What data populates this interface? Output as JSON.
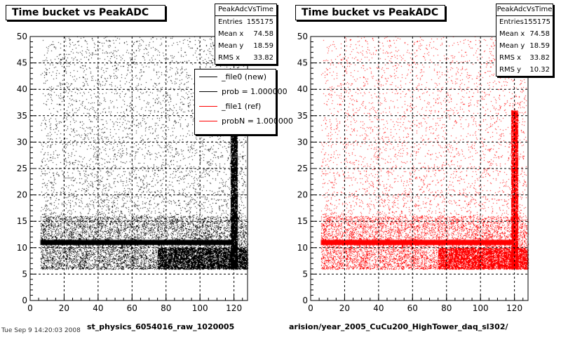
{
  "chart_data": [
    {
      "type": "scatter",
      "title": "Time bucket vs PeakADC",
      "xlim": [
        0,
        128
      ],
      "ylim": [
        0,
        50
      ],
      "x_ticks": [
        0,
        20,
        40,
        60,
        80,
        100,
        120
      ],
      "y_ticks": [
        0,
        5,
        10,
        15,
        20,
        25,
        30,
        35,
        40,
        45,
        50
      ],
      "grid": true,
      "grid_style": "dashed",
      "series": [
        {
          "name": "_file0 (new)",
          "color": "#000000"
        }
      ],
      "dense_band": {
        "y": [
          10.5,
          11.5
        ],
        "x": [
          6,
          120
        ]
      },
      "stats": {
        "title": "PeakAdcVsTime",
        "rows": [
          {
            "label": "Entries",
            "value": "155175"
          },
          {
            "label": "Mean x",
            "value": "74.58"
          },
          {
            "label": "Mean y",
            "value": "18.59"
          },
          {
            "label": "RMS x",
            "value": "33.82"
          }
        ]
      },
      "legend": {
        "placement": "top-right",
        "entries": [
          {
            "label": "_file0 (new)",
            "color": "#000000"
          },
          {
            "label": "prob = 1.000000",
            "color": "#000000"
          },
          {
            "label": "_file1 (ref)",
            "color": "#ff0000"
          },
          {
            "label": "probN = 1.000000",
            "color": "#ff0000"
          }
        ]
      },
      "file_label": "st_physics_6054016_raw_1020005"
    },
    {
      "type": "scatter",
      "title": "Time bucket vs PeakADC",
      "xlim": [
        0,
        128
      ],
      "ylim": [
        0,
        50
      ],
      "x_ticks": [
        0,
        20,
        40,
        60,
        80,
        100,
        120
      ],
      "y_ticks": [
        0,
        5,
        10,
        15,
        20,
        25,
        30,
        35,
        40,
        45,
        50
      ],
      "grid": true,
      "grid_style": "dashed",
      "series": [
        {
          "name": "_file1 (ref)",
          "color": "#ff0000"
        }
      ],
      "dense_band": {
        "y": [
          10.5,
          11.5
        ],
        "x": [
          6,
          120
        ]
      },
      "stats": {
        "title": "PeakAdcVsTime",
        "rows": [
          {
            "label": "Entries",
            "value": "155175"
          },
          {
            "label": "Mean x",
            "value": "74.58"
          },
          {
            "label": "Mean y",
            "value": "18.59"
          },
          {
            "label": "RMS x",
            "value": "33.82"
          },
          {
            "label": "RMS y",
            "value": "10.32"
          }
        ]
      },
      "file_label": "arision/year_2005_CuCu200_HighTower_daq_sl302/"
    }
  ],
  "footer_stamp": "Tue Sep  9 14:20:03 2008"
}
